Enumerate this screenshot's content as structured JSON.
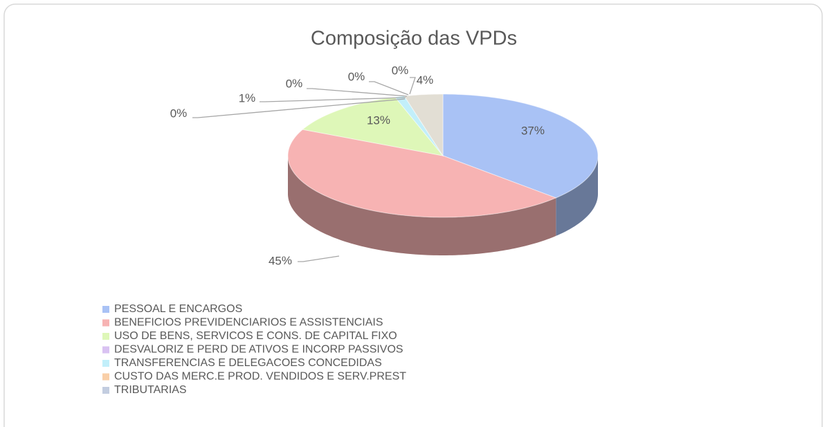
{
  "chart_data": {
    "type": "pie3d",
    "title": "Composição das VPDs",
    "categories": [
      "PESSOAL E ENCARGOS",
      "BENEFICIOS PREVIDENCIARIOS E ASSISTENCIAIS",
      "USO DE BENS, SERVICOS E CONS. DE CAPITAL FIXO",
      "DESVALORIZ E PERD DE ATIVOS E INCORP PASSIVOS",
      "TRANSFERENCIAS E DELEGACOES CONCEDIDAS",
      "CUSTO DAS MERC.E PROD. VENDIDOS E SERV.PREST",
      "TRIBUTARIAS",
      null,
      null
    ],
    "values": [
      37,
      45,
      13,
      0,
      1,
      0,
      0,
      0,
      4
    ],
    "colors": [
      "#a9c2f5",
      "#f7b3b3",
      "#def7b8",
      "#d9c2f2",
      "#c2effa",
      "#f9cfa8",
      "#c3cde0",
      "#cfcfcf",
      "#e2ded4"
    ],
    "legend": "bottom-left"
  }
}
